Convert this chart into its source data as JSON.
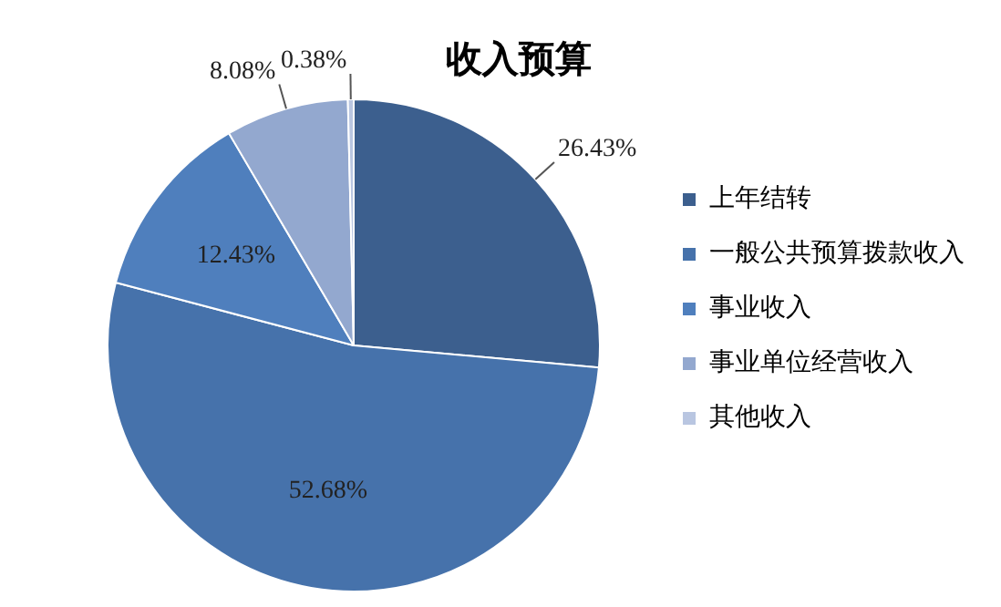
{
  "chart_data": {
    "type": "pie",
    "title": "收入预算",
    "categories": [
      "上年结转",
      "一般公共预算拨款收入",
      "事业收入",
      "事业单位经营收入",
      "其他收入"
    ],
    "values": [
      26.43,
      52.68,
      12.43,
      8.08,
      0.38
    ],
    "value_labels": [
      "26.43%",
      "52.68%",
      "12.43%",
      "8.08%",
      "0.38%"
    ],
    "colors": [
      "#3c5f8e",
      "#4672ab",
      "#4f7fbd",
      "#93a8cf",
      "#b9c6e1"
    ],
    "legend": "right"
  }
}
